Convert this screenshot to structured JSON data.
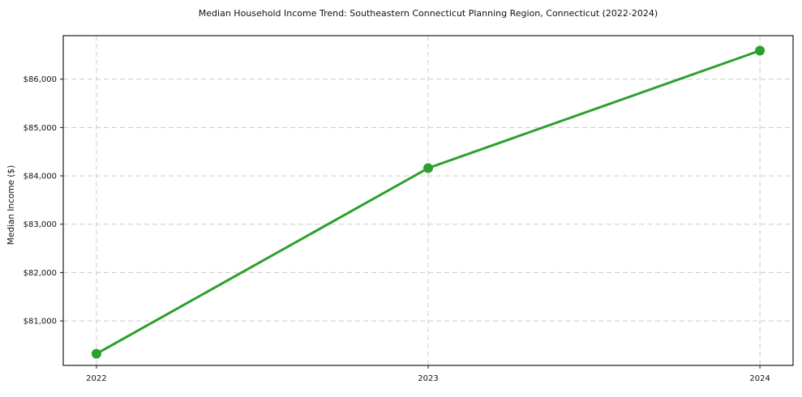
{
  "chart_data": {
    "type": "line",
    "title": "Median Household Income Trend: Southeastern Connecticut Planning Region, Connecticut (2022-2024)",
    "xlabel": "",
    "ylabel": "Median Income ($)",
    "series_name": "Median household income",
    "x": [
      2022,
      2023,
      2024
    ],
    "x_tick_labels": [
      "2022",
      "2023",
      "2024"
    ],
    "values": [
      80320,
      84160,
      86590
    ],
    "xlim": [
      2021.9,
      2024.1
    ],
    "ylim": [
      80080,
      86900
    ],
    "y_ticks": [
      81000,
      82000,
      83000,
      84000,
      85000,
      86000
    ],
    "y_tick_labels": [
      "$81,000",
      "$82,000",
      "$83,000",
      "$84,000",
      "$85,000",
      "$86,000"
    ],
    "grid": true,
    "grid_style": "dashed",
    "legend": false,
    "line_color": "#2ca02c",
    "marker": "circle",
    "marker_color": "#2ca02c",
    "grid_color": "#cccccc",
    "frame_color": "#1a1a1a",
    "background_color": "#ffffff"
  }
}
